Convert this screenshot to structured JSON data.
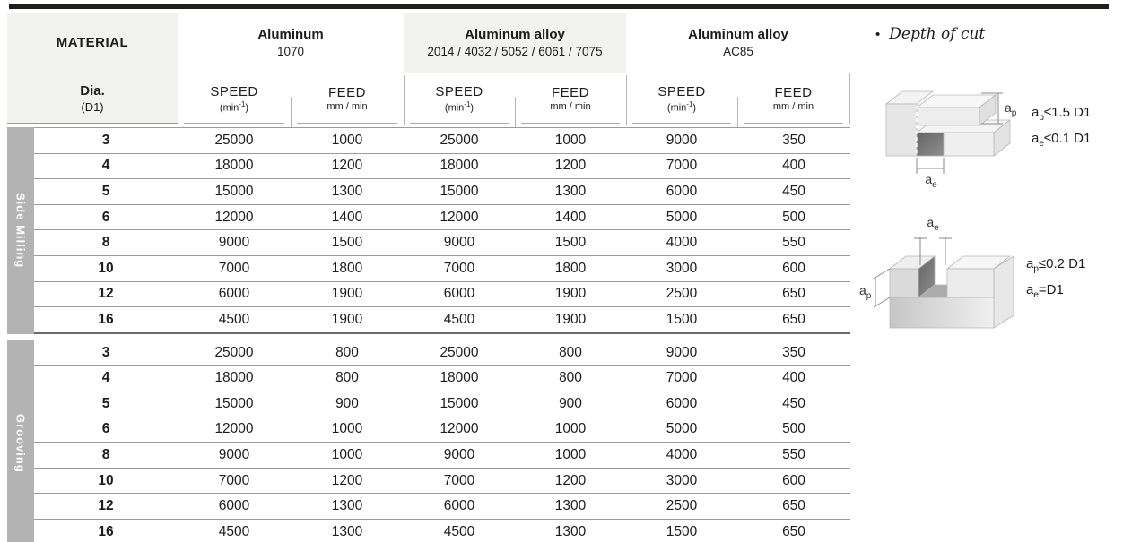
{
  "table": {
    "material_header": "MATERIAL",
    "dia": {
      "label": "Dia.",
      "sub": "(D1)"
    },
    "col_headers": {
      "speed": {
        "label": "SPEED",
        "unit_pre": "(min",
        "unit_sup": "-1",
        "unit_post": ")"
      },
      "feed": {
        "label": "FEED",
        "unit": "mm / min"
      }
    },
    "materials": [
      {
        "name": "Aluminum",
        "grades": "1070"
      },
      {
        "name": "Aluminum alloy",
        "grades": "2014 / 4032 / 5052 / 6061 / 7075"
      },
      {
        "name": "Aluminum alloy",
        "grades": "AC85"
      }
    ],
    "sections": [
      {
        "label": "Side Milling",
        "rows": [
          {
            "dia": "3",
            "values": [
              "25000",
              "1000",
              "25000",
              "1000",
              "9000",
              "350"
            ]
          },
          {
            "dia": "4",
            "values": [
              "18000",
              "1200",
              "18000",
              "1200",
              "7000",
              "400"
            ]
          },
          {
            "dia": "5",
            "values": [
              "15000",
              "1300",
              "15000",
              "1300",
              "6000",
              "450"
            ]
          },
          {
            "dia": "6",
            "values": [
              "12000",
              "1400",
              "12000",
              "1400",
              "5000",
              "500"
            ]
          },
          {
            "dia": "8",
            "values": [
              "9000",
              "1500",
              "9000",
              "1500",
              "4000",
              "550"
            ]
          },
          {
            "dia": "10",
            "values": [
              "7000",
              "1800",
              "7000",
              "1800",
              "3000",
              "600"
            ]
          },
          {
            "dia": "12",
            "values": [
              "6000",
              "1900",
              "6000",
              "1900",
              "2500",
              "650"
            ]
          },
          {
            "dia": "16",
            "values": [
              "4500",
              "1900",
              "4500",
              "1900",
              "1500",
              "650"
            ]
          }
        ]
      },
      {
        "label": "Grooving",
        "rows": [
          {
            "dia": "3",
            "values": [
              "25000",
              "800",
              "25000",
              "800",
              "9000",
              "350"
            ]
          },
          {
            "dia": "4",
            "values": [
              "18000",
              "800",
              "18000",
              "800",
              "7000",
              "400"
            ]
          },
          {
            "dia": "5",
            "values": [
              "15000",
              "900",
              "15000",
              "900",
              "6000",
              "450"
            ]
          },
          {
            "dia": "6",
            "values": [
              "12000",
              "1000",
              "12000",
              "1000",
              "5000",
              "500"
            ]
          },
          {
            "dia": "8",
            "values": [
              "9000",
              "1000",
              "9000",
              "1000",
              "4000",
              "550"
            ]
          },
          {
            "dia": "10",
            "values": [
              "7000",
              "1200",
              "7000",
              "1200",
              "3000",
              "600"
            ]
          },
          {
            "dia": "12",
            "values": [
              "6000",
              "1300",
              "6000",
              "1300",
              "2500",
              "650"
            ]
          },
          {
            "dia": "16",
            "values": [
              "4500",
              "1300",
              "4500",
              "1300",
              "1500",
              "650"
            ]
          }
        ]
      }
    ]
  },
  "notes": {
    "bullet": "•",
    "title": "Depth of cut",
    "side_milling": {
      "f1": {
        "base": "a",
        "sub": "p",
        "rest": "≤1.5 D1"
      },
      "f2": {
        "base": "a",
        "sub": "e",
        "rest": "≤0.1 D1"
      },
      "dim_ap": {
        "base": "a",
        "sub": "p"
      },
      "dim_ae": {
        "base": "a",
        "sub": "e"
      }
    },
    "grooving": {
      "f1": {
        "base": "a",
        "sub": "p",
        "rest": "≤0.2 D1"
      },
      "f2": {
        "base": "a",
        "sub": "e",
        "rest": "=D1"
      },
      "dim_ap": {
        "base": "a",
        "sub": "p"
      },
      "dim_ae": {
        "base": "a",
        "sub": "e"
      }
    }
  }
}
